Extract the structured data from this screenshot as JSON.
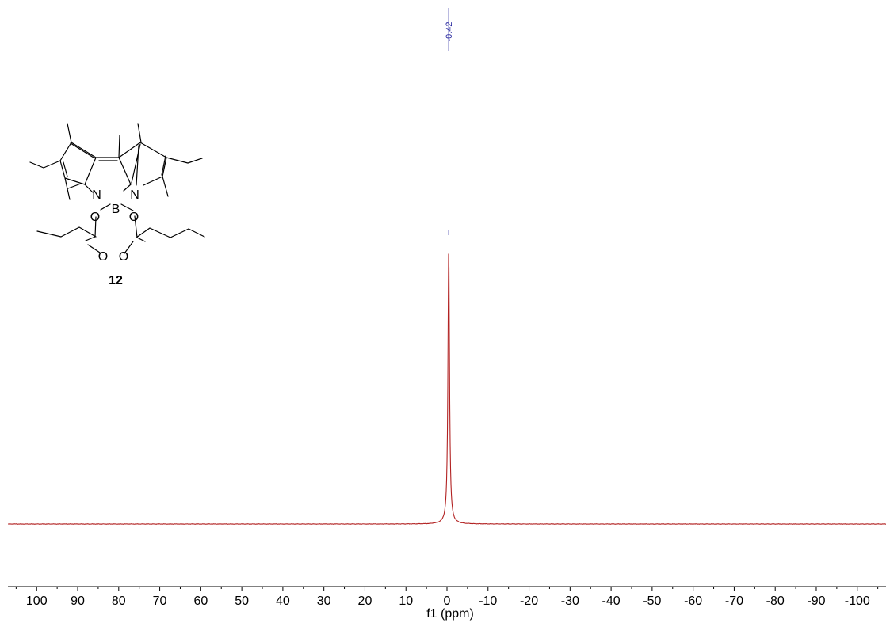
{
  "chart_data": {
    "type": "line",
    "xlabel": "f1 (ppm)",
    "xlim": [
      107,
      -107
    ],
    "x_reversed": true,
    "x_ticks": [
      100,
      90,
      80,
      70,
      60,
      50,
      40,
      30,
      20,
      10,
      0,
      -10,
      -20,
      -30,
      -40,
      -50,
      -60,
      -70,
      -80,
      -90,
      -100
    ],
    "x_tick_labels": [
      "100",
      "90",
      "80",
      "70",
      "60",
      "50",
      "40",
      "30",
      "20",
      "10",
      "0",
      "-10",
      "-20",
      "-30",
      "-40",
      "-50",
      "-60",
      "-70",
      "-80",
      "-90",
      "-100"
    ],
    "ylim": [
      0,
      1
    ],
    "series": [
      {
        "color": "#b22222",
        "peaks": [
          {
            "shift": -0.42,
            "intensity": 0.96,
            "width_ppm": 0.45
          }
        ]
      }
    ],
    "peak_labels": [
      {
        "shift": -0.42,
        "label": "-0.42"
      }
    ]
  },
  "structure": {
    "compound_number": "12",
    "atoms": {
      "n_left": "N",
      "n_right": "N",
      "boron": "B",
      "o_left": "O",
      "o_right": "O",
      "o_carbonyl_left": "O",
      "o_carbonyl_right": "O"
    }
  }
}
